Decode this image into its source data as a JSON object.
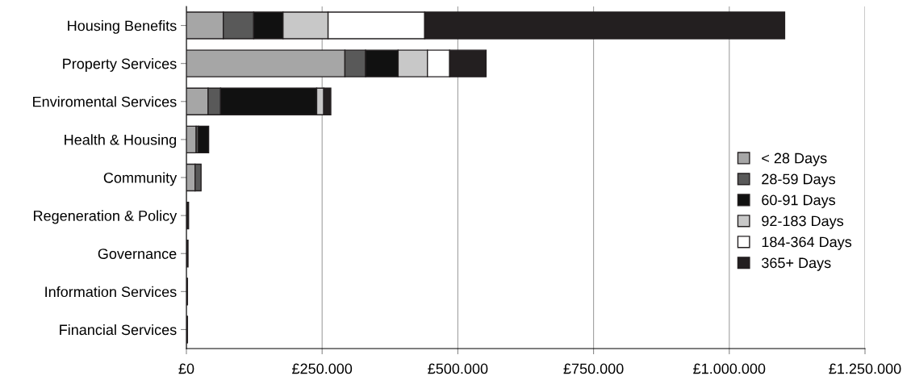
{
  "chart_data": {
    "type": "bar",
    "orientation": "horizontal",
    "stacked": true,
    "categories": [
      "Housing Benefits",
      "Property Services",
      "Enviromental Services",
      "Health & Housing",
      "Community",
      "Regeneration & Policy",
      "Governance",
      "Information Services",
      "Financial Services"
    ],
    "series": [
      {
        "name": "< 28 Days",
        "color": "#a6a6a6",
        "values": [
          68000,
          292000,
          40000,
          18000,
          16000,
          null,
          null,
          null,
          null
        ]
      },
      {
        "name": "28-59 Days",
        "color": "#595959",
        "values": [
          56000,
          38000,
          23000,
          4000,
          11000,
          null,
          null,
          null,
          null
        ]
      },
      {
        "name": "60-91 Days",
        "color": "#111111",
        "values": [
          54000,
          60000,
          177000,
          19000,
          null,
          null,
          null,
          null,
          null
        ]
      },
      {
        "name": "92-183 Days",
        "color": "#c8c8c8",
        "values": [
          83000,
          54000,
          13000,
          null,
          null,
          null,
          null,
          null,
          null
        ]
      },
      {
        "name": "184-364 Days",
        "color": "#ffffff",
        "values": [
          178000,
          41000,
          null,
          null,
          null,
          null,
          null,
          null,
          null
        ]
      },
      {
        "name": "365+ Days",
        "color": "#231f20",
        "values": [
          663000,
          67000,
          13000,
          null,
          null,
          4000,
          3000,
          2000,
          2000
        ]
      }
    ],
    "xlim": [
      0,
      1250000
    ],
    "xticks": [
      {
        "value": 0,
        "label": "£0"
      },
      {
        "value": 250000,
        "label": "£250.000"
      },
      {
        "value": 500000,
        "label": "£500.000"
      },
      {
        "value": 750000,
        "label": "£750.000"
      },
      {
        "value": 1000000,
        "label": "£1.000.000"
      },
      {
        "value": 1250000,
        "label": "£1.250.000"
      }
    ],
    "grid": "x",
    "legend": "right"
  }
}
